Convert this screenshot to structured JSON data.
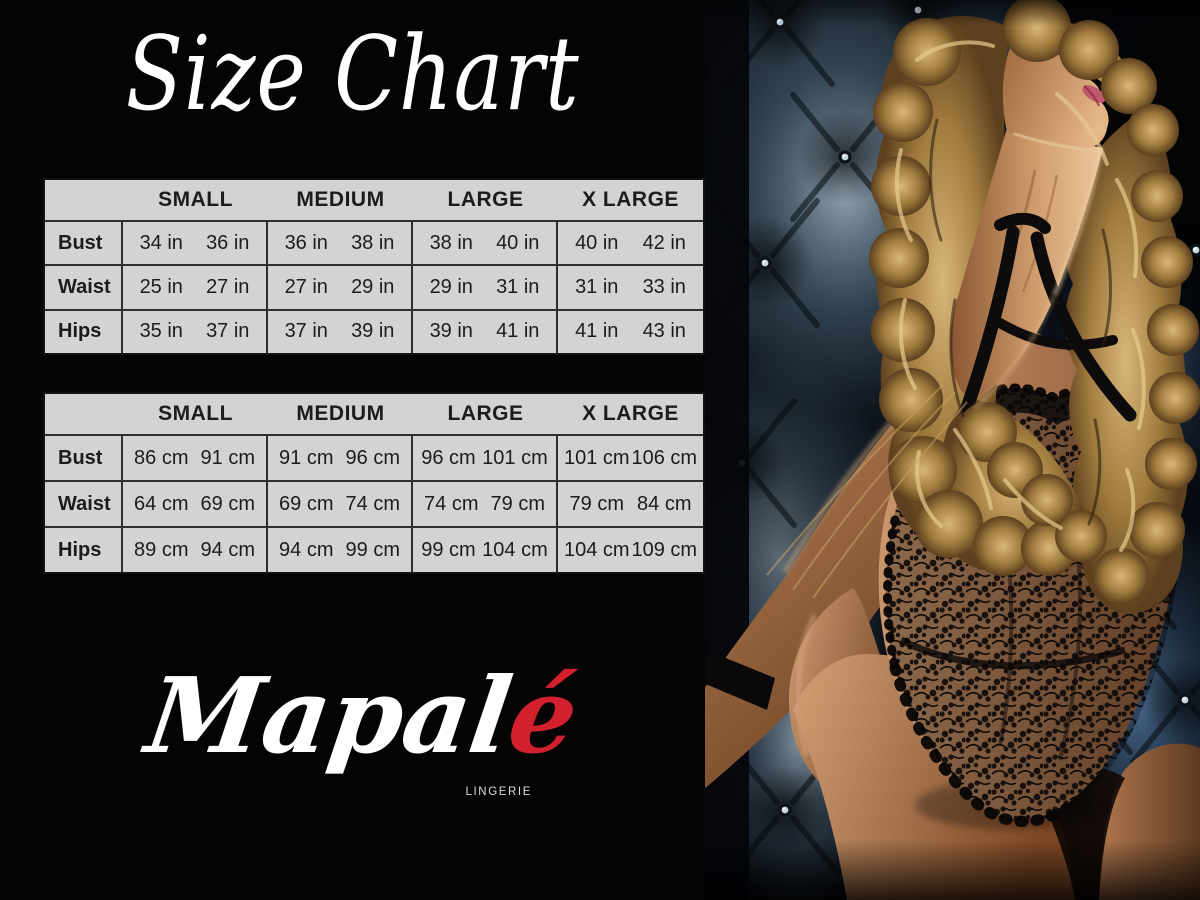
{
  "page": {
    "background": "#030303"
  },
  "title": {
    "text": "Size Chart"
  },
  "brand": {
    "script_main": "Mapal",
    "script_accent": "é",
    "subtitle": "LINGERIE"
  },
  "colors": {
    "accent_red": "#d2202f",
    "table_bg": "#d3d3d3",
    "table_text": "#1c1c1c",
    "title_white": "#ffffff",
    "upholstery_blue": "#4d6f94",
    "skin_tan": "#c08a5c",
    "hair_blonde": "#c9a263",
    "lace_black": "#0a0808"
  },
  "chart_data": [
    {
      "type": "table",
      "title": "Size Chart",
      "unit": "inches",
      "columns": [
        "SMALL",
        "MEDIUM",
        "LARGE",
        "X LARGE"
      ],
      "rows": [
        {
          "label": "Bust",
          "cells": [
            [
              "34 in",
              "36 in"
            ],
            [
              "36 in",
              "38 in"
            ],
            [
              "38 in",
              "40 in"
            ],
            [
              "40 in",
              "42 in"
            ]
          ]
        },
        {
          "label": "Waist",
          "cells": [
            [
              "25 in",
              "27 in"
            ],
            [
              "27 in",
              "29 in"
            ],
            [
              "29 in",
              "31 in"
            ],
            [
              "31 in",
              "33 in"
            ]
          ]
        },
        {
          "label": "Hips",
          "cells": [
            [
              "35 in",
              "37 in"
            ],
            [
              "37 in",
              "39 in"
            ],
            [
              "39 in",
              "41 in"
            ],
            [
              "41 in",
              "43 in"
            ]
          ]
        }
      ]
    },
    {
      "type": "table",
      "title": "Size Chart",
      "unit": "centimeters",
      "columns": [
        "SMALL",
        "MEDIUM",
        "LARGE",
        "X LARGE"
      ],
      "rows": [
        {
          "label": "Bust",
          "cells": [
            [
              "86 cm",
              "91 cm"
            ],
            [
              "91 cm",
              "96 cm"
            ],
            [
              "96 cm",
              "101 cm"
            ],
            [
              "101 cm",
              "106 cm"
            ]
          ]
        },
        {
          "label": "Waist",
          "cells": [
            [
              "64 cm",
              "69 cm"
            ],
            [
              "69 cm",
              "74 cm"
            ],
            [
              "74 cm",
              "79 cm"
            ],
            [
              "79 cm",
              "84 cm"
            ]
          ]
        },
        {
          "label": "Hips",
          "cells": [
            [
              "89 cm",
              "94 cm"
            ],
            [
              "94 cm",
              "99 cm"
            ],
            [
              "99 cm",
              "104 cm"
            ],
            [
              "104 cm",
              "109 cm"
            ]
          ]
        }
      ]
    }
  ],
  "photo": {
    "name": "lingerie-model-photo"
  }
}
